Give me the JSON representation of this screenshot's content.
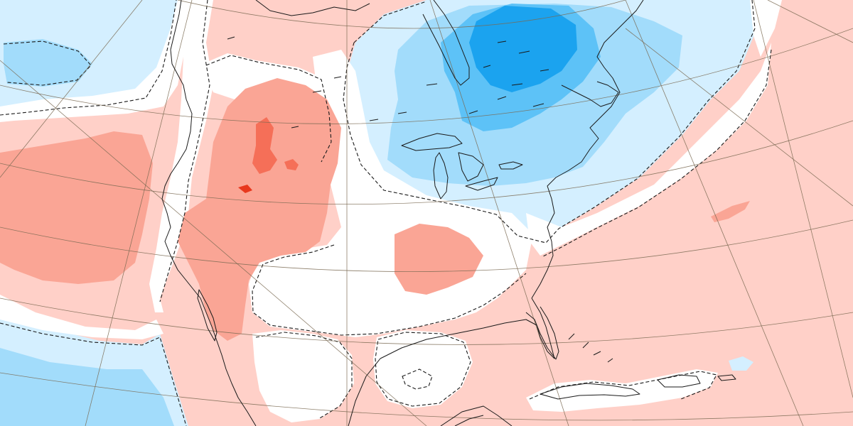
{
  "map": {
    "projection": "lambert-conformal-north-america",
    "has_text_labels": false,
    "colors": {
      "background": "#ffffff",
      "warm_1": "#ffd0c8",
      "warm_2": "#faa595",
      "warm_3": "#f56f58",
      "warm_4": "#e8381e",
      "cool_1": "#d4efff",
      "cool_2": "#a2dcfb",
      "cool_3": "#5dc2f7",
      "cool_4": "#1ba3ef",
      "coastline": "#1a1a1a",
      "graticule": "#7a6a52",
      "contour_dashed": "#1a1a1a"
    }
  }
}
